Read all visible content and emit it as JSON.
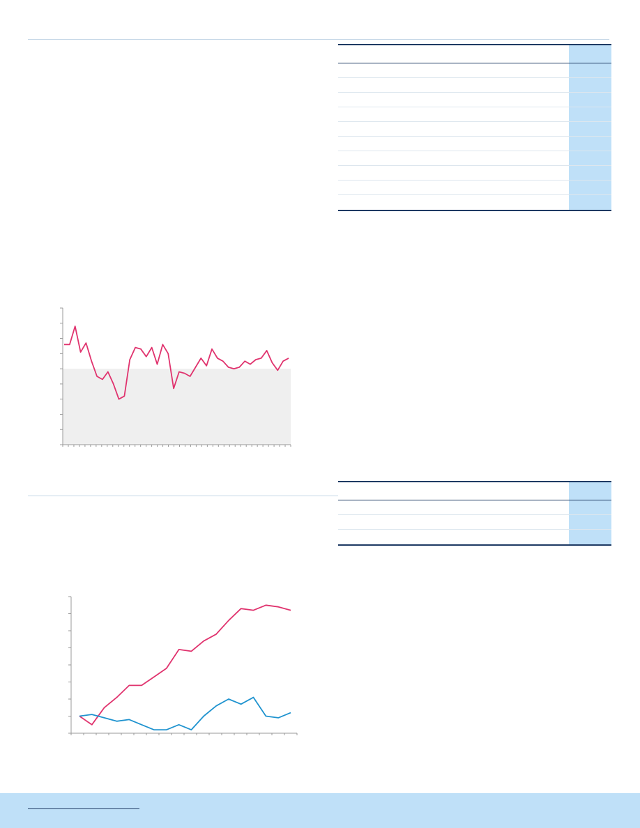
{
  "colors": {
    "rule": "#c4d6e6",
    "table_border": "#1e3a63",
    "table_highlight": "#bfe0f8",
    "series_primary": "#e0336e",
    "series_secondary": "#1f93cf",
    "band": "#efefef",
    "footer": "#bfe0f8"
  },
  "table1": {
    "rows": 10
  },
  "table2": {
    "rows": 3
  },
  "chart_data": [
    {
      "type": "line",
      "title": "",
      "xlabel": "",
      "ylabel": "",
      "ylim": [
        0,
        9
      ],
      "grid": false,
      "shaded_band": [
        0,
        5
      ],
      "series": [
        {
          "color": "#e0336e",
          "values": [
            6.6,
            6.6,
            7.8,
            6.1,
            6.7,
            5.5,
            4.5,
            4.3,
            4.8,
            4.0,
            3.0,
            3.2,
            5.6,
            6.4,
            6.3,
            5.8,
            6.4,
            5.3,
            6.6,
            6.0,
            3.7,
            4.8,
            4.7,
            4.5,
            5.1,
            5.7,
            5.2,
            6.3,
            5.7,
            5.5,
            5.1,
            5.0,
            5.1,
            5.5,
            5.3,
            5.6,
            5.7,
            6.2,
            5.4,
            4.9,
            5.5,
            5.7
          ]
        }
      ]
    },
    {
      "type": "line",
      "title": "",
      "xlabel": "",
      "ylabel": "",
      "ylim": [
        0,
        8
      ],
      "grid": false,
      "series": [
        {
          "color": "#e0336e",
          "values": [
            1.0,
            0.5,
            1.5,
            2.1,
            2.8,
            2.8,
            3.3,
            3.8,
            4.9,
            4.8,
            5.4,
            5.8,
            6.6,
            7.3,
            7.2,
            7.5,
            7.4,
            7.2
          ]
        },
        {
          "color": "#1f93cf",
          "values": [
            1.0,
            1.1,
            0.9,
            0.7,
            0.8,
            0.5,
            0.2,
            0.2,
            0.5,
            0.2,
            1.0,
            1.6,
            2.0,
            1.7,
            2.1,
            1.0,
            0.9,
            1.2
          ]
        }
      ]
    }
  ]
}
